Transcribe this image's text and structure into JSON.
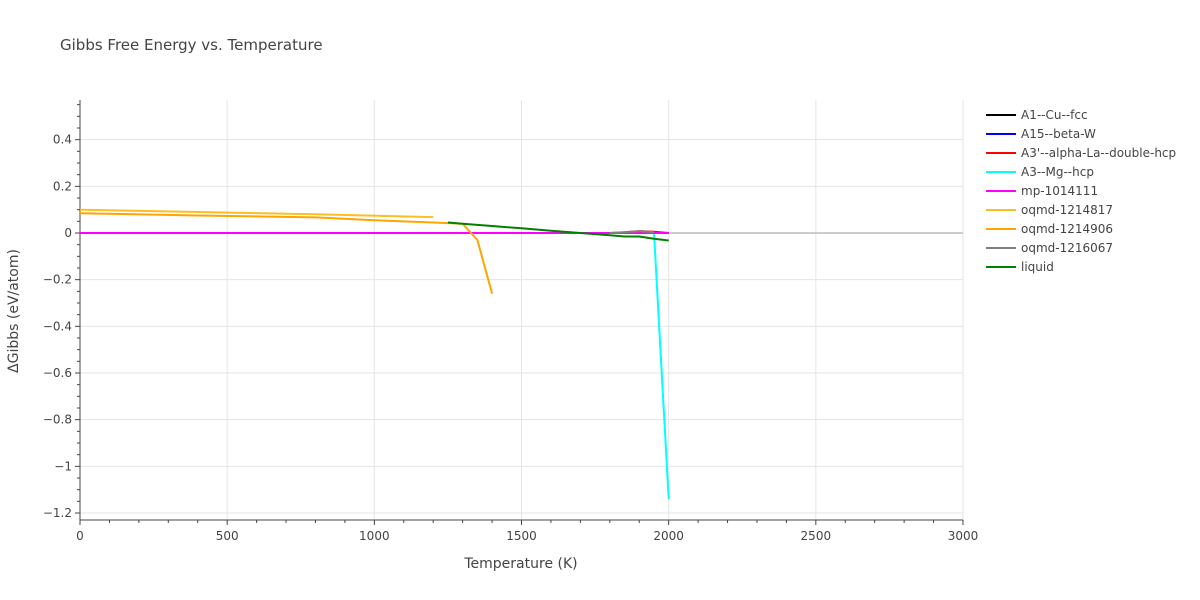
{
  "chart_data": {
    "type": "line",
    "title": "Gibbs Free Energy vs. Temperature",
    "xlabel": "Temperature (K)",
    "ylabel": "ΔGibbs (eV/atom)",
    "xlim": [
      0,
      3000
    ],
    "ylim": [
      -1.23,
      0.57
    ],
    "x_ticks": [
      0,
      500,
      1000,
      1500,
      2000,
      2500,
      3000
    ],
    "x_tick_labels": [
      "0",
      "500",
      "1000",
      "1500",
      "2000",
      "2500",
      "3000"
    ],
    "y_ticks": [
      0.4,
      0.2,
      0,
      -0.2,
      -0.4,
      -0.6,
      -0.8,
      -1,
      -1.2
    ],
    "y_tick_labels": [
      "0.4",
      "0.2",
      "0",
      "−0.2",
      "−0.4",
      "−0.6",
      "−0.8",
      "−1",
      "−1.2"
    ],
    "grid": true,
    "legend_position": "right",
    "series": [
      {
        "name": "A1--Cu--fcc",
        "color": "#000000",
        "x": [
          0,
          2000
        ],
        "y": [
          0,
          0
        ]
      },
      {
        "name": "A15--beta-W",
        "color": "#0000ff",
        "x": [
          0,
          2000
        ],
        "y": [
          0,
          0
        ]
      },
      {
        "name": "A3'--alpha-La--double-hcp",
        "color": "#ff0000",
        "x": [
          0,
          1800,
          1850,
          1900,
          1950,
          2000
        ],
        "y": [
          0,
          0,
          0.003,
          0.008,
          0.005,
          0
        ]
      },
      {
        "name": "A3--Mg--hcp",
        "color": "#00ffff",
        "x": [
          0,
          1850,
          1900,
          1950,
          2000
        ],
        "y": [
          0,
          0,
          0.003,
          0,
          -1.14
        ]
      },
      {
        "name": "mp-1014111",
        "color": "#ff00ff",
        "x": [
          0,
          2000
        ],
        "y": [
          0,
          0
        ]
      },
      {
        "name": "oqmd-1214817",
        "color": "#fbbf24",
        "x": [
          0,
          400,
          800,
          1200
        ],
        "y": [
          0.1,
          0.09,
          0.08,
          0.068
        ]
      },
      {
        "name": "oqmd-1214906",
        "color": "#ffa500",
        "x": [
          0,
          400,
          800,
          1000,
          1200,
          1300,
          1350,
          1400
        ],
        "y": [
          0.085,
          0.075,
          0.067,
          0.055,
          0.045,
          0.04,
          -0.03,
          -0.26
        ]
      },
      {
        "name": "oqmd-1216067",
        "color": "#808080",
        "x": [
          1800,
          1850,
          1900,
          1950
        ],
        "y": [
          0,
          0.003,
          0.008,
          0.003
        ]
      },
      {
        "name": "liquid",
        "color": "#008000",
        "x": [
          1250,
          1300,
          1400,
          1500,
          1600,
          1700,
          1800,
          1850,
          1900,
          1950,
          2000
        ],
        "y": [
          0.045,
          0.04,
          0.03,
          0.02,
          0.01,
          0,
          -0.01,
          -0.015,
          -0.015,
          -0.025,
          -0.032
        ]
      }
    ]
  }
}
